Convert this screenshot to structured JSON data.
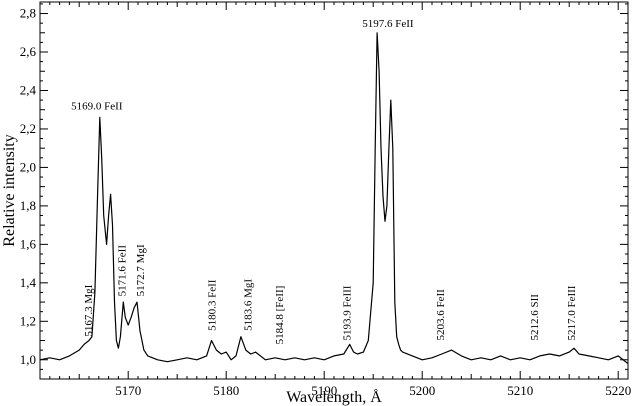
{
  "chart_data": {
    "type": "line",
    "title": "",
    "xlabel": "Wavelength, Å",
    "ylabel": "Relative intensity",
    "xlim": [
      5161,
      5221
    ],
    "ylim": [
      0.9,
      2.86
    ],
    "grid": false,
    "legend": "none",
    "line_color": "#000000",
    "x_major_ticks": [
      5170,
      5180,
      5190,
      5200,
      5210,
      5220
    ],
    "x_tick_labels": [
      "5170",
      "5180",
      "5190",
      "5200",
      "5210",
      "5220"
    ],
    "y_major_ticks": [
      1.0,
      1.2,
      1.4,
      1.6,
      1.8,
      2.0,
      2.2,
      2.4,
      2.6,
      2.8
    ],
    "y_tick_labels": [
      "1,0",
      "1,2",
      "1,4",
      "1,6",
      "1,8",
      "2,0",
      "2,2",
      "2,4",
      "2,6",
      "2,8"
    ],
    "series": [
      {
        "x": [
          5161.0,
          5162.0,
          5163.0,
          5164.0,
          5165.0,
          5165.5,
          5166.0,
          5166.3,
          5166.6,
          5166.9,
          5167.1,
          5167.3,
          5167.5,
          5167.8,
          5168.0,
          5168.2,
          5168.4,
          5168.6,
          5168.8,
          5169.0,
          5169.2,
          5169.5,
          5169.7,
          5170.0,
          5170.3,
          5170.6,
          5170.9,
          5171.2,
          5171.6,
          5172.0,
          5173.0,
          5174.0,
          5175.0,
          5176.0,
          5177.0,
          5178.0,
          5178.5,
          5179.0,
          5179.5,
          5180.0,
          5180.5,
          5181.0,
          5181.5,
          5182.0,
          5182.5,
          5183.0,
          5184.0,
          5185.0,
          5186.0,
          5187.0,
          5188.0,
          5189.0,
          5190.0,
          5191.0,
          5192.0,
          5192.6,
          5193.0,
          5193.4,
          5194.0,
          5194.5,
          5195.0,
          5195.2,
          5195.4,
          5195.6,
          5195.8,
          5196.0,
          5196.2,
          5196.4,
          5196.6,
          5196.8,
          5197.0,
          5197.2,
          5197.4,
          5197.6,
          5197.8,
          5198.0,
          5199.0,
          5200.0,
          5201.0,
          5202.0,
          5203.0,
          5204.0,
          5205.0,
          5206.0,
          5207.0,
          5208.0,
          5209.0,
          5210.0,
          5211.0,
          5212.0,
          5213.0,
          5214.0,
          5215.0,
          5215.5,
          5216.0,
          5217.0,
          5218.0,
          5219.0,
          5220.0,
          5221.0
        ],
        "y": [
          1.0,
          1.01,
          1.0,
          1.02,
          1.05,
          1.08,
          1.1,
          1.12,
          1.35,
          1.9,
          2.26,
          2.05,
          1.75,
          1.6,
          1.75,
          1.86,
          1.7,
          1.3,
          1.1,
          1.06,
          1.12,
          1.3,
          1.22,
          1.18,
          1.22,
          1.27,
          1.3,
          1.15,
          1.05,
          1.02,
          1.0,
          0.99,
          1.0,
          1.01,
          1.0,
          1.02,
          1.1,
          1.05,
          1.03,
          1.04,
          1.0,
          1.02,
          1.12,
          1.05,
          1.03,
          1.04,
          1.0,
          1.01,
          1.0,
          1.01,
          1.0,
          1.01,
          1.0,
          1.02,
          1.03,
          1.08,
          1.04,
          1.03,
          1.04,
          1.1,
          1.4,
          2.1,
          2.7,
          2.5,
          2.1,
          1.85,
          1.72,
          1.8,
          2.1,
          2.35,
          2.1,
          1.3,
          1.12,
          1.08,
          1.05,
          1.04,
          1.02,
          1.0,
          1.01,
          1.03,
          1.05,
          1.02,
          1.0,
          1.01,
          1.0,
          1.02,
          1.0,
          1.01,
          1.0,
          1.02,
          1.03,
          1.02,
          1.04,
          1.06,
          1.03,
          1.02,
          1.01,
          1.0,
          1.02,
          0.98
        ]
      }
    ],
    "annotations": [
      {
        "text": "5167.3 MgI",
        "x": 5166.3,
        "y": 1.12,
        "rotate": true
      },
      {
        "text": "5169.0 FeII",
        "x": 5166.8,
        "y": 2.3,
        "rotate": false
      },
      {
        "text": "5171.6 FeII",
        "x": 5169.7,
        "y": 1.33,
        "rotate": true
      },
      {
        "text": "5172.7 MgI",
        "x": 5171.6,
        "y": 1.33,
        "rotate": true
      },
      {
        "text": "5180.3 FeII",
        "x": 5178.9,
        "y": 1.15,
        "rotate": true
      },
      {
        "text": "5183.6 MgI",
        "x": 5182.6,
        "y": 1.15,
        "rotate": true
      },
      {
        "text": "5184.8 [FeII]",
        "x": 5185.8,
        "y": 1.08,
        "rotate": true
      },
      {
        "text": "5193.9 FeIII",
        "x": 5192.7,
        "y": 1.1,
        "rotate": true
      },
      {
        "text": "5197.6 FeII",
        "x": 5196.5,
        "y": 2.73,
        "rotate": false
      },
      {
        "text": "5203.6 FeII",
        "x": 5202.2,
        "y": 1.1,
        "rotate": true
      },
      {
        "text": "5212.6 SII",
        "x": 5211.8,
        "y": 1.1,
        "rotate": true
      },
      {
        "text": "5217.0 FeIII",
        "x": 5215.6,
        "y": 1.1,
        "rotate": true
      }
    ]
  }
}
